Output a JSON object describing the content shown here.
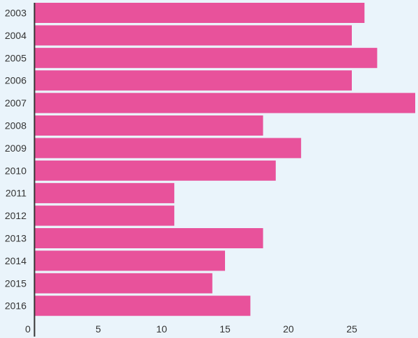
{
  "chart_data": {
    "type": "bar",
    "orientation": "horizontal",
    "title": "",
    "xlabel": "",
    "ylabel": "",
    "categories": [
      "2003",
      "2004",
      "2005",
      "2006",
      "2007",
      "2008",
      "2009",
      "2010",
      "2011",
      "2012",
      "2013",
      "2014",
      "2015",
      "2016"
    ],
    "values": [
      26,
      25,
      27,
      25,
      30,
      18,
      21,
      19,
      11,
      11,
      18,
      15,
      14,
      17
    ],
    "xlim": [
      0,
      30
    ],
    "xticks": [
      0,
      5,
      10,
      15,
      20,
      25
    ],
    "grid": false,
    "colors": {
      "bar": "#e8529b",
      "background": "#eaf4fb",
      "axis": "#333333",
      "text": "#333333"
    }
  }
}
